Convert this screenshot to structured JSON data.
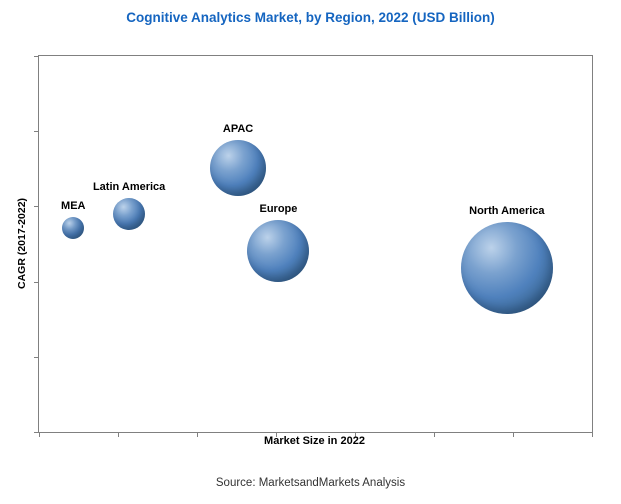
{
  "source": "Source: MarketsandMarkets Analysis",
  "chart_data": {
    "type": "scatter",
    "subtype": "bubble",
    "title": "Cognitive Analytics Market, by Region, 2022 (USD Billion)",
    "xlabel": "Market Size in 2022",
    "ylabel": "CAGR (2017-2022)",
    "legend_position": "none",
    "grid": false,
    "axis_numeric_labels": false,
    "x_axis_meaning": "Market Size in 2022 (USD Billion), increasing left to right",
    "y_axis_meaning": "CAGR 2017-2022, increasing bottom to top",
    "x_tick_count": 8,
    "y_tick_count": 6,
    "bubble_colors": {
      "highlight": "#bcd2ea",
      "mid": "#4f81bd",
      "dark": "#2a5482"
    },
    "points": [
      {
        "label": "MEA",
        "x_pct": 6.2,
        "y_pct": 54.3,
        "radius_px": 11
      },
      {
        "label": "Latin America",
        "x_pct": 16.3,
        "y_pct": 58.0,
        "radius_px": 16
      },
      {
        "label": "APAC",
        "x_pct": 36.0,
        "y_pct": 70.2,
        "radius_px": 28
      },
      {
        "label": "Europe",
        "x_pct": 43.3,
        "y_pct": 48.1,
        "radius_px": 31
      },
      {
        "label": "North America",
        "x_pct": 84.6,
        "y_pct": 43.6,
        "radius_px": 46
      }
    ]
  },
  "colors": {
    "title": "#1565c0",
    "plot_border": "#808080",
    "label_text": "#000000",
    "source_text": "#333333"
  }
}
